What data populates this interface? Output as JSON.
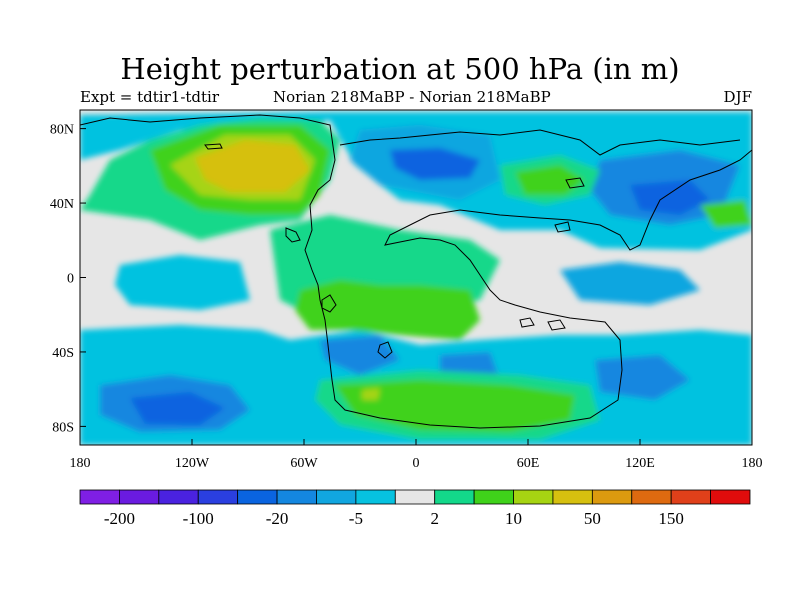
{
  "chart_data": {
    "type": "heatmap",
    "title": "Height perturbation at 500 hPa (in m)",
    "left_label": "Expt = tdtir1-tdtir",
    "center_label": "Norian   218MaBP - Norian   218MaBP",
    "right_label": "DJF",
    "x_ticks": [
      "180",
      "120W",
      "60W",
      "0",
      "60E",
      "120E",
      "180"
    ],
    "y_ticks": [
      "80N",
      "40N",
      "0",
      "40S",
      "80S"
    ],
    "x_range": [
      -180,
      180
    ],
    "y_range": [
      -90,
      90
    ],
    "colorbar": {
      "levels": [
        "-200",
        "-100",
        "-20",
        "-5",
        "2",
        "10",
        "50",
        "150"
      ],
      "colors": [
        "#7f1fe4",
        "#6a1be0",
        "#4a22e0",
        "#2a3fe0",
        "#0a64e0",
        "#1487e0",
        "#11a6e0",
        "#06c2e0",
        "#e6e6e6",
        "#13d88a",
        "#3fd21a",
        "#a6d412",
        "#d6c00f",
        "#dc9a0f",
        "#de6a10",
        "#e0401a",
        "#e00c0c"
      ]
    },
    "regions": [
      {
        "name": "north-pacific-high",
        "level": "50",
        "color": "#d6c00f",
        "lon": -105,
        "lat": 50
      },
      {
        "name": "arctic-low",
        "level": "-20",
        "color": "#0a64e0",
        "lon": 5,
        "lat": 60
      },
      {
        "name": "siberian-low",
        "level": "-20",
        "color": "#0a64e0",
        "lon": 125,
        "lat": 45
      },
      {
        "name": "central-asia-high",
        "level": "10",
        "color": "#3fd21a",
        "lon": 70,
        "lat": 45
      },
      {
        "name": "south-pacific-low",
        "level": "-20",
        "color": "#0a64e0",
        "lon": -130,
        "lat": -70
      },
      {
        "name": "southern-high",
        "level": "10",
        "color": "#3fd21a",
        "lon": 40,
        "lat": -65
      },
      {
        "name": "equatorial-atlantic-high",
        "level": "10",
        "color": "#3fd21a",
        "lon": -5,
        "lat": -15
      }
    ]
  }
}
